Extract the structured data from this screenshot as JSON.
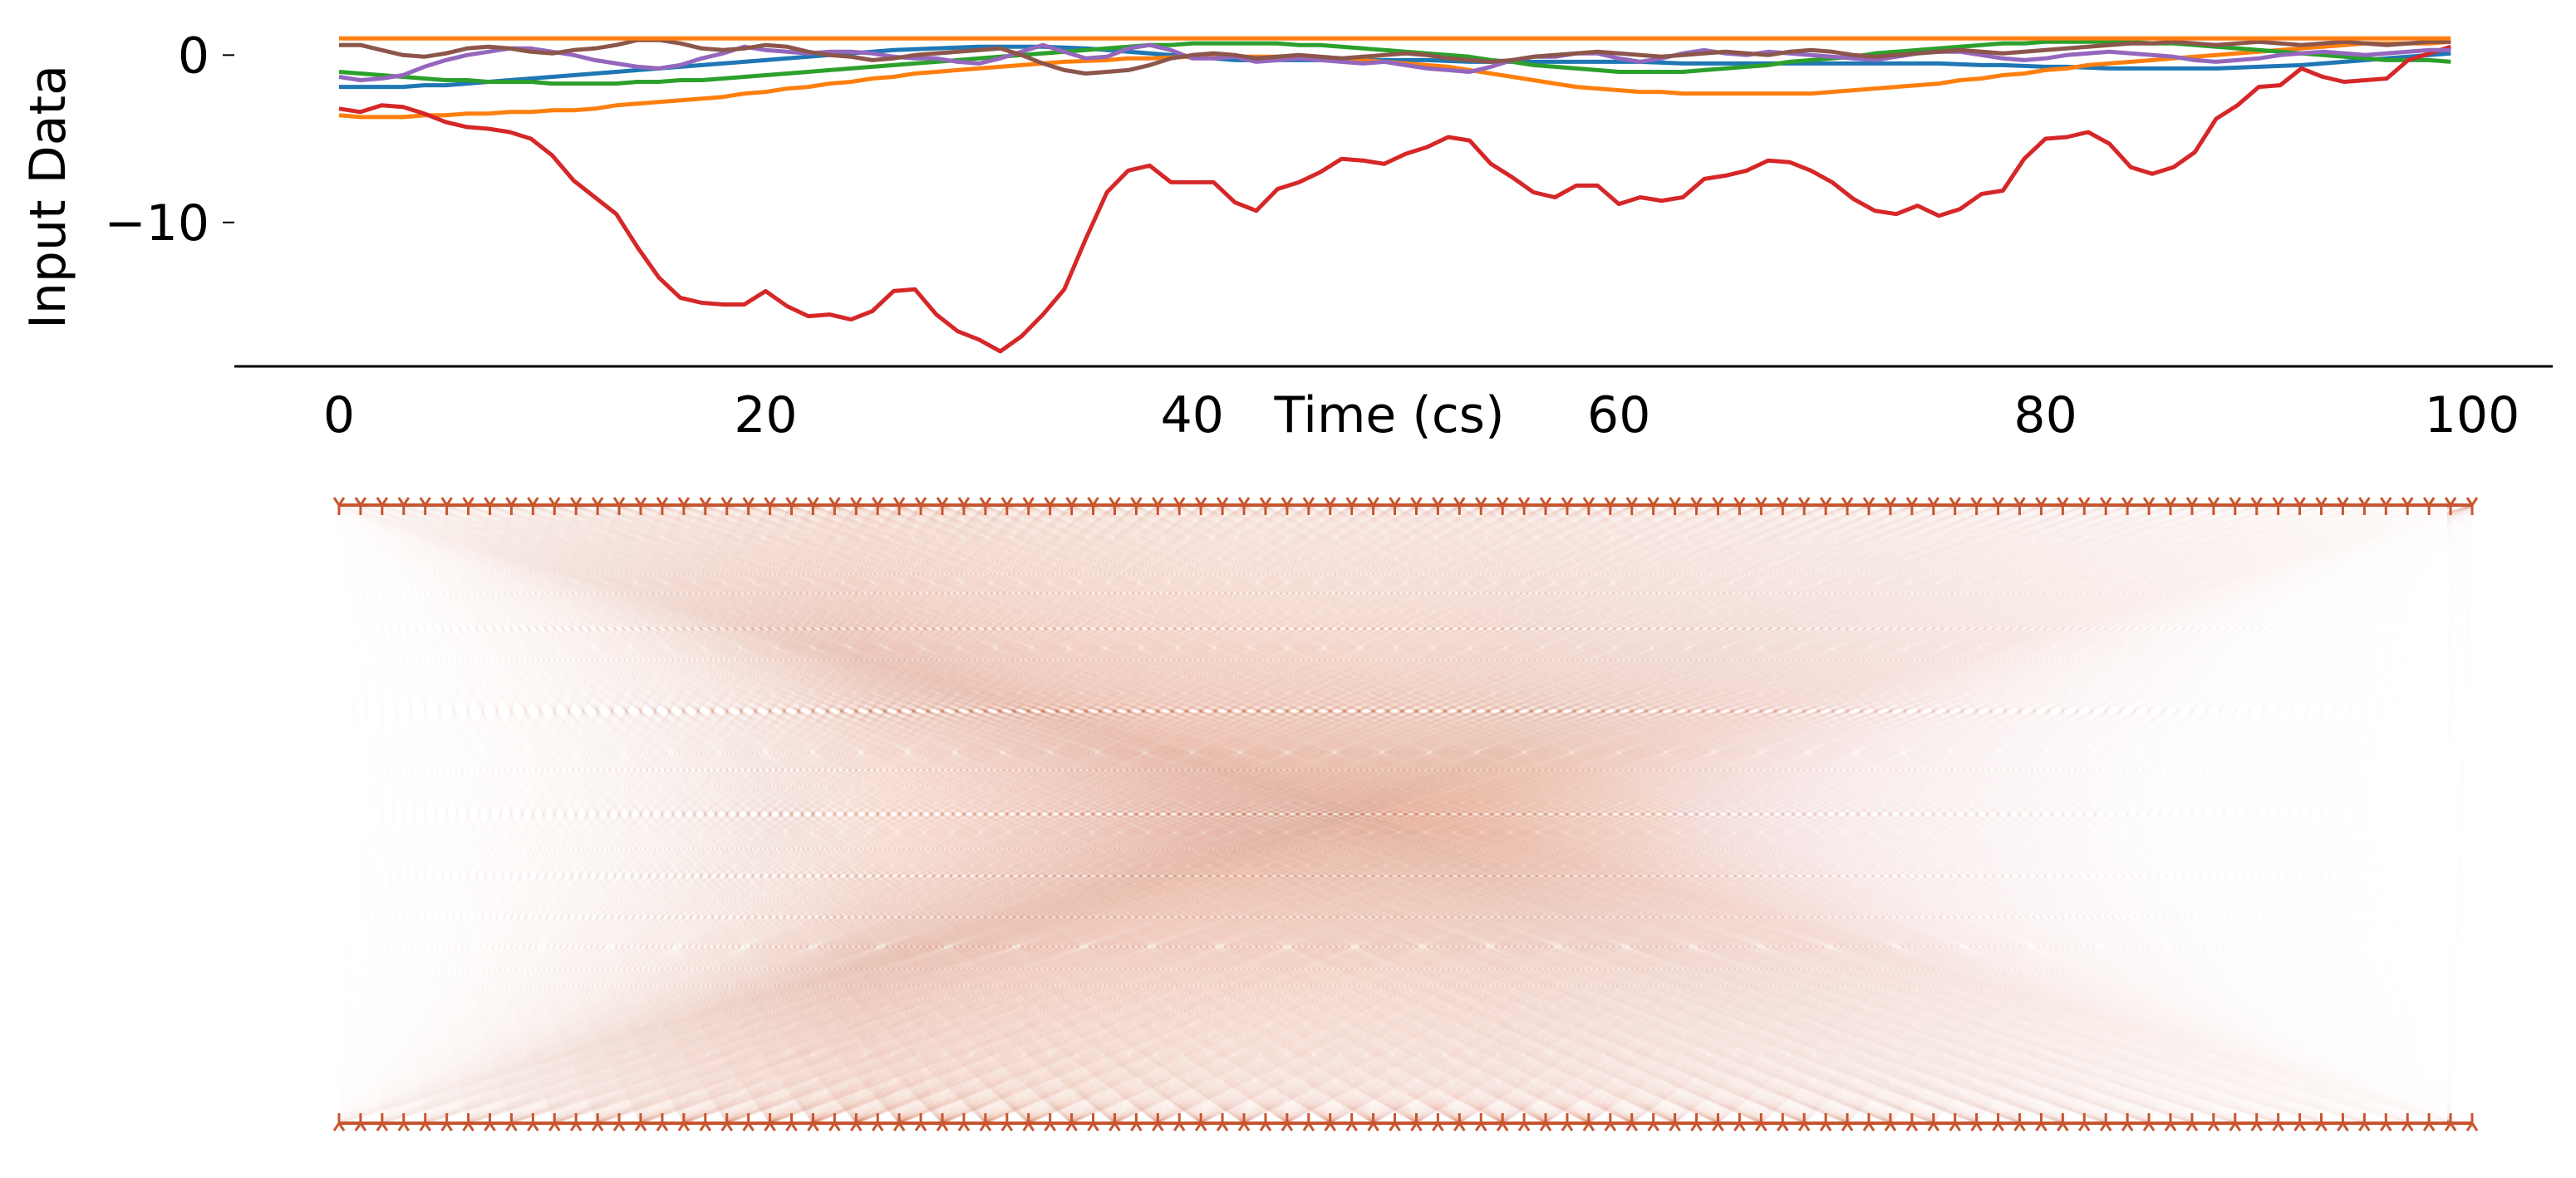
{
  "chart_data": {
    "type": "line",
    "title": "",
    "xlabel": "Time (cs)",
    "ylabel": "Input Data",
    "xlim": [
      -5,
      104
    ],
    "ylim": [
      -18.6,
      2.2
    ],
    "x_ticks": [
      0,
      20,
      40,
      60,
      80,
      100
    ],
    "y_ticks": [
      0,
      -10
    ],
    "x_tick_labels": [
      "0",
      "20",
      "40",
      "60",
      "80",
      "100"
    ],
    "y_tick_labels": [
      "0",
      "−10"
    ],
    "grid": false,
    "x_start": 0,
    "x_step": 1,
    "series": [
      {
        "color": "#1f77b4",
        "values": [
          -1.9,
          -1.9,
          -1.9,
          -1.9,
          -1.8,
          -1.8,
          -1.7,
          -1.6,
          -1.5,
          -1.4,
          -1.3,
          -1.2,
          -1.1,
          -1.0,
          -0.9,
          -0.8,
          -0.7,
          -0.6,
          -0.5,
          -0.4,
          -0.3,
          -0.2,
          -0.1,
          0.0,
          0.1,
          0.2,
          0.3,
          0.35,
          0.4,
          0.45,
          0.5,
          0.5,
          0.5,
          0.5,
          0.45,
          0.4,
          0.3,
          0.2,
          0.1,
          0.0,
          -0.1,
          -0.2,
          -0.3,
          -0.3,
          -0.3,
          -0.3,
          -0.3,
          -0.3,
          -0.3,
          -0.3,
          -0.3,
          -0.3,
          -0.35,
          -0.4,
          -0.4,
          -0.4,
          -0.4,
          -0.4,
          -0.4,
          -0.4,
          -0.4,
          -0.4,
          -0.45,
          -0.5,
          -0.5,
          -0.5,
          -0.5,
          -0.5,
          -0.5,
          -0.5,
          -0.5,
          -0.5,
          -0.5,
          -0.5,
          -0.5,
          -0.5,
          -0.55,
          -0.6,
          -0.6,
          -0.65,
          -0.7,
          -0.7,
          -0.75,
          -0.8,
          -0.8,
          -0.8,
          -0.8,
          -0.8,
          -0.8,
          -0.75,
          -0.7,
          -0.65,
          -0.6,
          -0.5,
          -0.4,
          -0.3,
          -0.2,
          -0.1,
          0.0,
          0.1
        ]
      },
      {
        "color": "#ff7f0e",
        "values": [
          -3.6,
          -3.7,
          -3.7,
          -3.7,
          -3.6,
          -3.6,
          -3.5,
          -3.5,
          -3.4,
          -3.4,
          -3.3,
          -3.3,
          -3.2,
          -3.0,
          -2.9,
          -2.8,
          -2.7,
          -2.6,
          -2.5,
          -2.3,
          -2.2,
          -2.0,
          -1.9,
          -1.7,
          -1.6,
          -1.4,
          -1.3,
          -1.1,
          -1.0,
          -0.9,
          -0.8,
          -0.7,
          -0.6,
          -0.5,
          -0.4,
          -0.35,
          -0.3,
          -0.2,
          -0.2,
          -0.15,
          -0.1,
          -0.1,
          -0.1,
          -0.1,
          -0.1,
          -0.15,
          -0.2,
          -0.2,
          -0.3,
          -0.4,
          -0.5,
          -0.6,
          -0.7,
          -0.9,
          -1.1,
          -1.3,
          -1.5,
          -1.7,
          -1.9,
          -2.0,
          -2.1,
          -2.2,
          -2.2,
          -2.3,
          -2.3,
          -2.3,
          -2.3,
          -2.3,
          -2.3,
          -2.3,
          -2.2,
          -2.1,
          -2.0,
          -1.9,
          -1.8,
          -1.7,
          -1.5,
          -1.4,
          -1.2,
          -1.1,
          -0.9,
          -0.8,
          -0.6,
          -0.5,
          -0.4,
          -0.3,
          -0.2,
          -0.1,
          0.0,
          0.1,
          0.2,
          0.3,
          0.4,
          0.5,
          0.6,
          0.7,
          0.7,
          0.7,
          0.7,
          0.8
        ]
      },
      {
        "color": "#2ca02c",
        "values": [
          -1.0,
          -1.1,
          -1.2,
          -1.3,
          -1.4,
          -1.5,
          -1.5,
          -1.6,
          -1.6,
          -1.6,
          -1.7,
          -1.7,
          -1.7,
          -1.7,
          -1.6,
          -1.6,
          -1.5,
          -1.5,
          -1.4,
          -1.3,
          -1.2,
          -1.1,
          -1.0,
          -0.9,
          -0.8,
          -0.7,
          -0.6,
          -0.5,
          -0.4,
          -0.3,
          -0.2,
          -0.1,
          0.0,
          0.1,
          0.2,
          0.3,
          0.4,
          0.5,
          0.6,
          0.6,
          0.7,
          0.7,
          0.7,
          0.7,
          0.7,
          0.6,
          0.6,
          0.5,
          0.4,
          0.3,
          0.2,
          0.1,
          0.0,
          -0.1,
          -0.3,
          -0.4,
          -0.6,
          -0.7,
          -0.8,
          -0.9,
          -1.0,
          -1.0,
          -1.0,
          -1.0,
          -0.9,
          -0.8,
          -0.7,
          -0.6,
          -0.4,
          -0.3,
          -0.2,
          -0.1,
          0.1,
          0.2,
          0.3,
          0.4,
          0.5,
          0.6,
          0.7,
          0.7,
          0.8,
          0.8,
          0.8,
          0.8,
          0.8,
          0.7,
          0.7,
          0.6,
          0.5,
          0.4,
          0.3,
          0.2,
          0.1,
          0.0,
          -0.1,
          -0.2,
          -0.3,
          -0.3,
          -0.3,
          -0.4
        ]
      },
      {
        "color": "#d62728",
        "values": [
          -3.2,
          -3.4,
          -3.0,
          -3.1,
          -3.5,
          -4.0,
          -4.3,
          -4.4,
          -4.6,
          -5.0,
          -6.0,
          -7.5,
          -8.5,
          -9.5,
          -11.5,
          -13.3,
          -14.5,
          -14.8,
          -14.9,
          -14.9,
          -14.1,
          -15.0,
          -15.6,
          -15.5,
          -15.8,
          -15.3,
          -14.1,
          -14.0,
          -15.5,
          -16.5,
          -17.0,
          -17.7,
          -16.8,
          -15.5,
          -14.0,
          -11.0,
          -8.2,
          -6.9,
          -6.6,
          -7.6,
          -7.6,
          -7.6,
          -8.8,
          -9.3,
          -8.0,
          -7.6,
          -7.0,
          -6.2,
          -6.3,
          -6.5,
          -5.9,
          -5.5,
          -4.9,
          -5.1,
          -6.5,
          -7.3,
          -8.2,
          -8.5,
          -7.8,
          -7.8,
          -8.9,
          -8.5,
          -8.7,
          -8.5,
          -7.4,
          -7.2,
          -6.9,
          -6.3,
          -6.4,
          -6.9,
          -7.6,
          -8.6,
          -9.3,
          -9.5,
          -9.0,
          -9.6,
          -9.2,
          -8.3,
          -8.1,
          -6.2,
          -5.0,
          -4.9,
          -4.6,
          -5.3,
          -6.7,
          -7.1,
          -6.7,
          -5.8,
          -3.8,
          -3.0,
          -1.9,
          -1.8,
          -0.8,
          -1.3,
          -1.6,
          -1.5,
          -1.4,
          -0.3,
          0.1,
          0.5
        ]
      },
      {
        "color": "#9467bd",
        "values": [
          -1.3,
          -1.5,
          -1.4,
          -1.2,
          -0.7,
          -0.3,
          0.0,
          0.2,
          0.4,
          0.4,
          0.2,
          0.0,
          -0.3,
          -0.5,
          -0.7,
          -0.8,
          -0.6,
          -0.2,
          0.1,
          0.5,
          0.3,
          0.2,
          0.1,
          0.2,
          0.2,
          0.1,
          -0.1,
          -0.2,
          -0.2,
          -0.4,
          -0.5,
          -0.2,
          0.2,
          0.6,
          0.2,
          -0.2,
          -0.1,
          0.4,
          0.6,
          0.3,
          -0.2,
          -0.2,
          -0.1,
          -0.4,
          -0.3,
          -0.2,
          -0.3,
          -0.4,
          -0.5,
          -0.4,
          -0.6,
          -0.8,
          -0.9,
          -1.0,
          -0.7,
          -0.3,
          -0.1,
          -0.1,
          0.1,
          0.1,
          -0.2,
          -0.4,
          -0.2,
          0.1,
          0.3,
          0.1,
          0.0,
          0.2,
          0.1,
          0.0,
          -0.1,
          -0.2,
          -0.3,
          -0.1,
          0.1,
          0.2,
          0.2,
          0.0,
          -0.2,
          -0.3,
          -0.2,
          0.0,
          0.1,
          0.2,
          0.1,
          0.0,
          -0.1,
          -0.3,
          -0.4,
          -0.3,
          -0.2,
          0.0,
          0.1,
          0.2,
          0.1,
          0.0,
          0.1,
          0.2,
          0.3,
          0.3
        ]
      },
      {
        "color": "#8c564b",
        "values": [
          0.6,
          0.6,
          0.3,
          0.0,
          -0.1,
          0.1,
          0.4,
          0.5,
          0.4,
          0.2,
          0.1,
          0.3,
          0.4,
          0.6,
          0.9,
          0.9,
          0.7,
          0.4,
          0.3,
          0.4,
          0.6,
          0.5,
          0.2,
          0.0,
          -0.1,
          -0.3,
          -0.2,
          0.0,
          0.1,
          0.2,
          0.3,
          0.4,
          0.0,
          -0.5,
          -0.9,
          -1.1,
          -1.0,
          -0.9,
          -0.6,
          -0.2,
          0.0,
          0.1,
          0.0,
          -0.2,
          -0.1,
          0.0,
          -0.1,
          -0.2,
          -0.1,
          0.0,
          0.1,
          0.0,
          -0.2,
          -0.3,
          -0.4,
          -0.3,
          -0.1,
          0.0,
          0.1,
          0.2,
          0.1,
          0.0,
          -0.1,
          0.0,
          0.1,
          0.2,
          0.1,
          0.0,
          0.2,
          0.3,
          0.2,
          0.0,
          -0.1,
          0.0,
          0.1,
          0.2,
          0.3,
          0.2,
          0.1,
          0.2,
          0.3,
          0.4,
          0.5,
          0.6,
          0.7,
          0.7,
          0.8,
          0.7,
          0.6,
          0.7,
          0.8,
          0.7,
          0.6,
          0.7,
          0.8,
          0.7,
          0.6,
          0.7,
          0.8,
          0.8
        ]
      },
      {
        "color": "#ff7f0e",
        "values": [
          1.0,
          1.0,
          1.0,
          1.0,
          1.0,
          1.0,
          1.0,
          1.0,
          1.0,
          1.0,
          1.0,
          1.0,
          1.0,
          1.0,
          1.0,
          1.0,
          1.0,
          1.0,
          1.0,
          1.0,
          1.0,
          1.0,
          1.0,
          1.0,
          1.0,
          1.0,
          1.0,
          1.0,
          1.0,
          1.0,
          1.0,
          1.0,
          1.0,
          1.0,
          1.0,
          1.0,
          1.0,
          1.0,
          1.0,
          1.0,
          1.0,
          1.0,
          1.0,
          1.0,
          1.0,
          1.0,
          1.0,
          1.0,
          1.0,
          1.0,
          1.0,
          1.0,
          1.0,
          1.0,
          1.0,
          1.0,
          1.0,
          1.0,
          1.0,
          1.0,
          1.0,
          1.0,
          1.0,
          1.0,
          1.0,
          1.0,
          1.0,
          1.0,
          1.0,
          1.0,
          1.0,
          1.0,
          1.0,
          1.0,
          1.0,
          1.0,
          1.0,
          1.0,
          1.0,
          1.0,
          1.0,
          1.0,
          1.0,
          1.0,
          1.0,
          1.0,
          1.0,
          1.0,
          1.0,
          1.0,
          1.0,
          1.0,
          1.0,
          1.0,
          1.0,
          1.0,
          1.0,
          1.0,
          1.0,
          1.0
        ]
      }
    ],
    "connectivity_panel": {
      "type": "network",
      "node_count": 100,
      "rows": 2,
      "color": "#c8552f",
      "light_color": "#e8c8a0"
    }
  }
}
